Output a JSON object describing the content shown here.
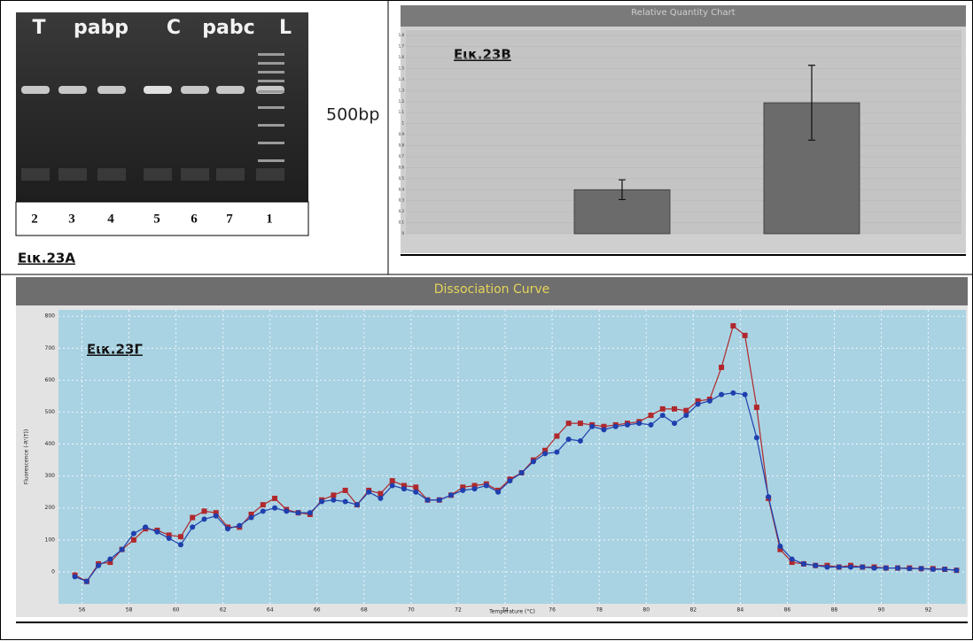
{
  "gel": {
    "lane_labels": [
      "T",
      "pabp",
      "C",
      "pabc",
      "L"
    ],
    "lane_numbers": [
      "2",
      "3",
      "4",
      "5",
      "6",
      "7",
      "1"
    ],
    "marker_label": "500bp",
    "caption": "Εικ.23A"
  },
  "chart_data": [
    {
      "type": "bar",
      "title": "Relative Quantity Chart",
      "caption": "Εικ.23B",
      "categories": [
        null,
        null
      ],
      "values": [
        0.4,
        1.19
      ],
      "errors": [
        0.09,
        0.34
      ],
      "color": "#6b6b6b",
      "ylim": [
        0,
        1.85
      ],
      "yticks": [
        0,
        0.1,
        0.2,
        0.3,
        0.4,
        0.5,
        0.6,
        0.7,
        0.8,
        0.9,
        1,
        1.1,
        1.2,
        1.3,
        1.4,
        1.5,
        1.6,
        1.7,
        1.8
      ],
      "grid": true
    },
    {
      "type": "line",
      "title": "Dissociation Curve",
      "caption": "Εικ.23Γ",
      "x_label": "Temperature (°C)",
      "y_label": "Fluorescence (-R'(T))",
      "x": [
        55.7,
        56.2,
        56.7,
        57.2,
        57.7,
        58.2,
        58.7,
        59.2,
        59.7,
        60.2,
        60.7,
        61.2,
        61.7,
        62.2,
        62.7,
        63.2,
        63.7,
        64.2,
        64.7,
        65.2,
        65.7,
        66.2,
        66.7,
        67.2,
        67.7,
        68.2,
        68.7,
        69.2,
        69.7,
        70.2,
        70.7,
        71.2,
        71.7,
        72.2,
        72.7,
        73.2,
        73.7,
        74.2,
        74.7,
        75.2,
        75.7,
        76.2,
        76.7,
        77.2,
        77.7,
        78.2,
        78.7,
        79.2,
        79.7,
        80.2,
        80.7,
        81.2,
        81.7,
        82.2,
        82.7,
        83.2,
        83.7,
        84.2,
        84.7,
        85.2,
        85.7,
        86.2,
        86.7,
        87.2,
        87.7,
        88.2,
        88.7,
        89.2,
        89.7,
        90.2,
        90.7,
        91.2,
        91.7,
        92.2,
        92.7,
        93.2
      ],
      "series": [
        {
          "name": null,
          "color": "#b0282c",
          "marker": "square",
          "values": [
            -10,
            -30,
            25,
            30,
            70,
            100,
            135,
            130,
            115,
            110,
            170,
            190,
            185,
            140,
            140,
            180,
            210,
            230,
            195,
            185,
            180,
            225,
            240,
            255,
            210,
            255,
            245,
            285,
            270,
            265,
            225,
            225,
            240,
            265,
            270,
            275,
            255,
            290,
            310,
            350,
            380,
            425,
            465,
            465,
            460,
            455,
            460,
            465,
            470,
            490,
            510,
            510,
            505,
            535,
            540,
            640,
            770,
            740,
            515,
            230,
            70,
            30,
            25,
            20,
            20,
            15,
            20,
            15,
            15,
            12,
            12,
            12,
            10,
            10,
            8,
            5
          ]
        },
        {
          "name": null,
          "color": "#1f3fae",
          "marker": "circle",
          "values": [
            -15,
            -30,
            20,
            40,
            70,
            120,
            140,
            125,
            105,
            85,
            140,
            165,
            175,
            135,
            145,
            170,
            190,
            200,
            190,
            185,
            185,
            220,
            225,
            220,
            210,
            250,
            230,
            270,
            260,
            250,
            225,
            225,
            240,
            255,
            260,
            270,
            250,
            285,
            310,
            345,
            370,
            375,
            415,
            410,
            455,
            445,
            455,
            460,
            465,
            460,
            490,
            465,
            490,
            525,
            535,
            555,
            560,
            555,
            420,
            235,
            80,
            40,
            25,
            20,
            15,
            15,
            15,
            15,
            12,
            12,
            12,
            10,
            10,
            8,
            8,
            5
          ]
        }
      ],
      "xlim": [
        55,
        93.6
      ],
      "ylim": [
        -100,
        820
      ],
      "xticks": [
        56,
        58,
        60,
        62,
        64,
        66,
        68,
        70,
        72,
        74,
        76,
        78,
        80,
        82,
        84,
        86,
        88,
        90,
        92
      ],
      "yticks": [
        0,
        100,
        200,
        300,
        400,
        500,
        600,
        700,
        800
      ],
      "grid": true
    }
  ]
}
